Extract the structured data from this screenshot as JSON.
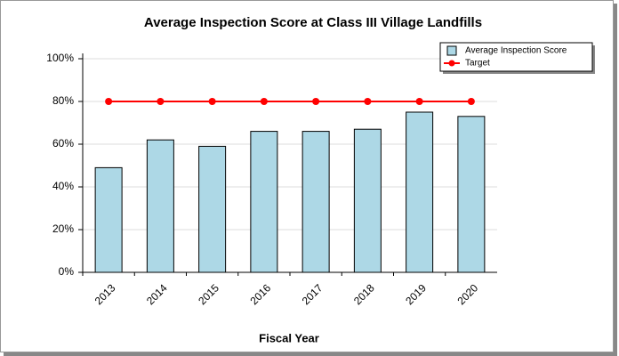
{
  "chart_data": {
    "type": "bar",
    "title": "Average Inspection Score at Class III Village Landfills",
    "xlabel": "Fiscal Year",
    "categories": [
      "2013",
      "2014",
      "2015",
      "2016",
      "2017",
      "2018",
      "2019",
      "2020"
    ],
    "series": [
      {
        "name": "Average Inspection Score",
        "type": "bar",
        "color": "#add8e6",
        "values": [
          49,
          62,
          59,
          66,
          66,
          67,
          75,
          73
        ]
      },
      {
        "name": "Target",
        "type": "line",
        "color": "#ff0000",
        "values": [
          80,
          80,
          80,
          80,
          80,
          80,
          80,
          80
        ]
      }
    ],
    "ylim": [
      0,
      100
    ],
    "yticks": [
      {
        "value": 0,
        "label": "0%"
      },
      {
        "value": 20,
        "label": "20%"
      },
      {
        "value": 40,
        "label": "40%"
      },
      {
        "value": 60,
        "label": "60%"
      },
      {
        "value": 80,
        "label": "80%"
      },
      {
        "value": 100,
        "label": "100%"
      }
    ],
    "grid": true,
    "legend": "upper right"
  }
}
